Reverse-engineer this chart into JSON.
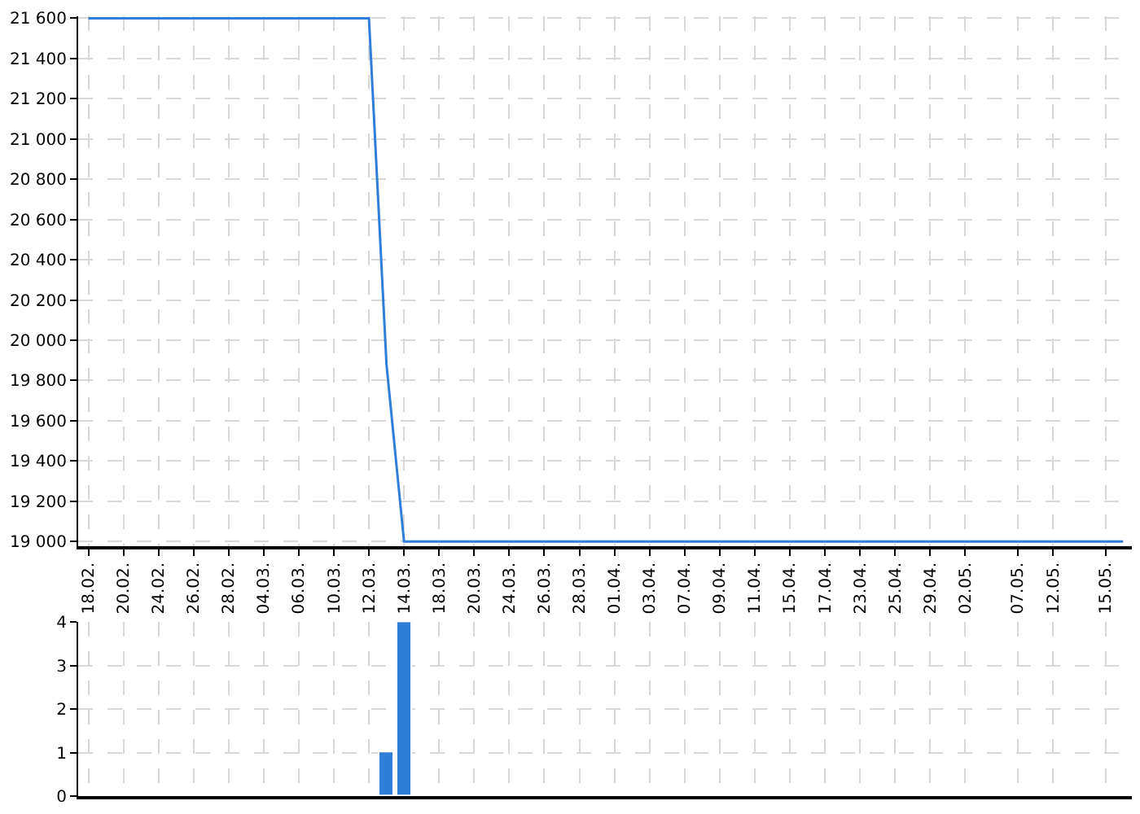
{
  "chart_data": [
    {
      "type": "line",
      "categories": [
        "18.02.",
        null,
        "20.02.",
        null,
        "24.02.",
        null,
        "26.02.",
        null,
        "28.02.",
        null,
        "04.03.",
        null,
        "06.03.",
        null,
        "10.03.",
        null,
        "12.03.",
        null,
        "14.03.",
        null,
        "18.03.",
        null,
        "20.03.",
        null,
        "24.03.",
        null,
        "26.03.",
        null,
        "28.03.",
        null,
        "01.04.",
        null,
        "03.04.",
        null,
        "07.04.",
        null,
        "09.04.",
        null,
        "11.04.",
        null,
        "15.04.",
        null,
        "17.04.",
        null,
        "23.04.",
        null,
        "25.04.",
        null,
        "29.04.",
        null,
        "02.05.",
        null,
        null,
        "07.05.",
        null,
        "12.05.",
        null,
        null,
        "15.05.",
        null
      ],
      "series": [
        {
          "color": "#2f7ed8",
          "values": [
            21600,
            21600,
            21600,
            21600,
            21600,
            21600,
            21600,
            21600,
            21600,
            21600,
            21600,
            21600,
            21600,
            21600,
            21600,
            21600,
            21600,
            19880,
            19000,
            19000,
            19000,
            19000,
            19000,
            19000,
            19000,
            19000,
            19000,
            19000,
            19000,
            19000,
            19000,
            19000,
            19000,
            19000,
            19000,
            19000,
            19000,
            19000,
            19000,
            19000,
            19000,
            19000,
            19000,
            19000,
            19000,
            19000,
            19000,
            19000,
            19000,
            19000,
            19000,
            19000,
            19000,
            19000,
            19000,
            19000,
            19000,
            19000,
            19000,
            19000
          ]
        }
      ],
      "ylim": [
        18975,
        21610
      ],
      "yticks": [
        {
          "value": 19000,
          "label": "19 000"
        },
        {
          "value": 19200,
          "label": "19 200"
        },
        {
          "value": 19400,
          "label": "19 400"
        },
        {
          "value": 19600,
          "label": "19 600"
        },
        {
          "value": 19800,
          "label": "19 800"
        },
        {
          "value": 20000,
          "label": "20 000"
        },
        {
          "value": 20200,
          "label": "20 200"
        },
        {
          "value": 20400,
          "label": "20 400"
        },
        {
          "value": 20600,
          "label": "20 600"
        },
        {
          "value": 20800,
          "label": "20 800"
        },
        {
          "value": 21000,
          "label": "21 000"
        },
        {
          "value": 21200,
          "label": "21 200"
        },
        {
          "value": 21400,
          "label": "21 400"
        },
        {
          "value": 21600,
          "label": "21 600"
        }
      ],
      "grid": true,
      "legend": false,
      "marker": "none",
      "line_style": "solid"
    },
    {
      "type": "bar",
      "categories": [
        "18.02.",
        null,
        "20.02.",
        null,
        "24.02.",
        null,
        "26.02.",
        null,
        "28.02.",
        null,
        "04.03.",
        null,
        "06.03.",
        null,
        "10.03.",
        null,
        "12.03.",
        null,
        "14.03.",
        null,
        "18.03.",
        null,
        "20.03.",
        null,
        "24.03.",
        null,
        "26.03.",
        null,
        "28.03.",
        null,
        "01.04.",
        null,
        "03.04.",
        null,
        "07.04.",
        null,
        "09.04.",
        null,
        "11.04.",
        null,
        "15.04.",
        null,
        "17.04.",
        null,
        "23.04.",
        null,
        "25.04.",
        null,
        "29.04.",
        null,
        "02.05.",
        null,
        null,
        "07.05.",
        null,
        "12.05.",
        null,
        null,
        "15.05.",
        null
      ],
      "series": [
        {
          "color": "#2f7ed8",
          "values": [
            null,
            null,
            null,
            null,
            null,
            null,
            null,
            null,
            null,
            null,
            null,
            null,
            null,
            null,
            null,
            null,
            null,
            1,
            4,
            null,
            null,
            null,
            null,
            null,
            null,
            null,
            null,
            null,
            null,
            null,
            null,
            null,
            null,
            null,
            null,
            null,
            null,
            null,
            null,
            null,
            null,
            null,
            null,
            null,
            null,
            null,
            null,
            null,
            null,
            null,
            null,
            null,
            null,
            null,
            null,
            null,
            null,
            null,
            null,
            null
          ]
        }
      ],
      "ylim": [
        0,
        4
      ],
      "yticks": [
        0,
        1,
        2,
        3,
        4
      ],
      "grid": true,
      "legend": false,
      "tick_labels": "y"
    }
  ]
}
